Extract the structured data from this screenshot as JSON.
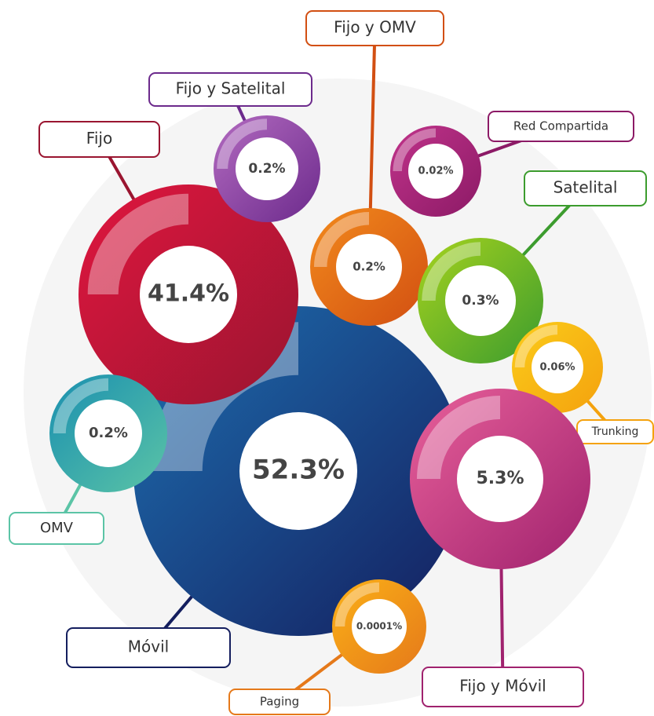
{
  "nodes": [
    {
      "label": "Móvil",
      "value": "52.3%"
    },
    {
      "label": "Fijo",
      "value": "41.4%"
    },
    {
      "label": "Fijo y Satelital",
      "value": "0.2%"
    },
    {
      "label": "Fijo y OMV",
      "value": "0.2%"
    },
    {
      "label": "Red Compartida",
      "value": "0.02%"
    },
    {
      "label": "Satelital",
      "value": "0.3%"
    },
    {
      "label": "Trunking",
      "value": "0.06%"
    },
    {
      "label": "Fijo y Móvil",
      "value": "5.3%"
    },
    {
      "label": "OMV",
      "value": "0.2%"
    },
    {
      "label": "Paging",
      "value": "0.0001%"
    }
  ]
}
